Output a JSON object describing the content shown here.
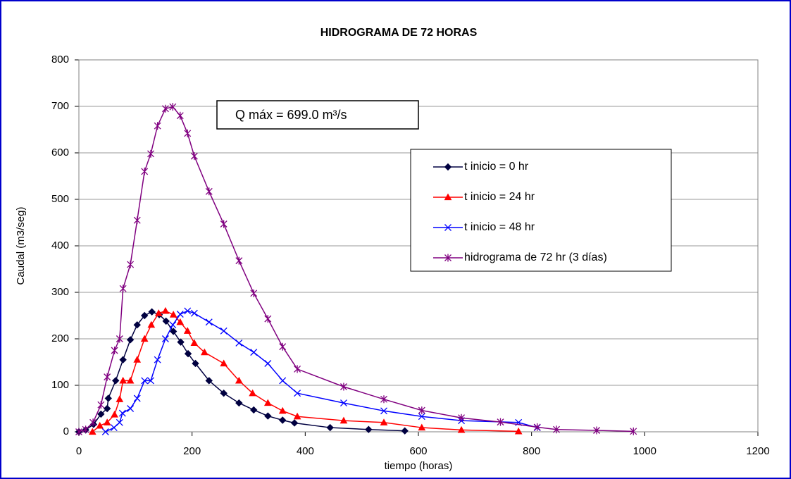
{
  "chart_data": {
    "type": "line",
    "title": "HIDROGRAMA DE 72 HORAS",
    "xlabel": "tiempo (horas)",
    "ylabel": "Caudal (m3/seg)",
    "annotation": "Q máx = 699.0 m³/s",
    "xlim": [
      0,
      1200
    ],
    "xticks": [
      0,
      200,
      400,
      600,
      800,
      1000,
      1200
    ],
    "ylim": [
      0,
      800
    ],
    "yticks": [
      0,
      100,
      200,
      300,
      400,
      500,
      600,
      700,
      800
    ],
    "grid": true,
    "series": [
      {
        "name": "t inicio = 0 hr",
        "color": "#000040",
        "marker": "diamond",
        "x": [
          0,
          12,
          26,
          39,
          50,
          52,
          65,
          78,
          91,
          103,
          116,
          129,
          142,
          154,
          167,
          180,
          193,
          206,
          230,
          256,
          283,
          309,
          334,
          360,
          381,
          444,
          512,
          576
        ],
        "values": [
          0,
          4,
          16,
          38,
          50,
          72,
          110,
          155,
          198,
          230,
          250,
          258,
          252,
          238,
          216,
          193,
          168,
          147,
          110,
          83,
          62,
          47,
          34,
          25,
          19,
          9,
          5,
          2
        ]
      },
      {
        "name": "t inicio = 24 hr",
        "color": "#ff0000",
        "marker": "triangle",
        "x": [
          24,
          37,
          50,
          63,
          72,
          78,
          91,
          103,
          116,
          128,
          141,
          153,
          167,
          179,
          192,
          204,
          222,
          256,
          283,
          307,
          334,
          360,
          386,
          468,
          539,
          606,
          676,
          777
        ],
        "values": [
          0,
          13,
          20,
          37,
          70,
          110,
          110,
          155,
          200,
          230,
          255,
          260,
          252,
          236,
          217,
          191,
          171,
          147,
          110,
          83,
          62,
          45,
          33,
          24,
          20,
          9,
          4,
          1
        ]
      },
      {
        "name": "t inicio = 48 hr",
        "color": "#0000ff",
        "marker": "x",
        "x": [
          47,
          62,
          72,
          77,
          91,
          103,
          116,
          127,
          139,
          153,
          166,
          179,
          192,
          204,
          230,
          256,
          283,
          309,
          334,
          360,
          386,
          468,
          539,
          606,
          676,
          777,
          810
        ],
        "values": [
          0,
          9,
          20,
          40,
          50,
          72,
          110,
          110,
          155,
          200,
          230,
          253,
          260,
          255,
          236,
          217,
          191,
          171,
          147,
          110,
          83,
          62,
          45,
          33,
          24,
          20,
          9
        ]
      },
      {
        "name": "hidrograma de 72 hr (3 días)",
        "color": "#800080",
        "marker": "star",
        "x": [
          0,
          12,
          25,
          39,
          50,
          63,
          72,
          78,
          91,
          103,
          116,
          127,
          139,
          153,
          166,
          179,
          192,
          204,
          230,
          256,
          283,
          309,
          334,
          360,
          386,
          468,
          539,
          606,
          676,
          745,
          810,
          844,
          915,
          980
        ],
        "values": [
          0,
          5,
          20,
          58,
          118,
          175,
          200,
          308,
          360,
          455,
          560,
          598,
          658,
          695,
          699,
          680,
          642,
          593,
          517,
          447,
          368,
          298,
          243,
          183,
          135,
          97,
          70,
          46,
          30,
          21,
          10,
          5,
          3,
          1
        ]
      }
    ]
  }
}
